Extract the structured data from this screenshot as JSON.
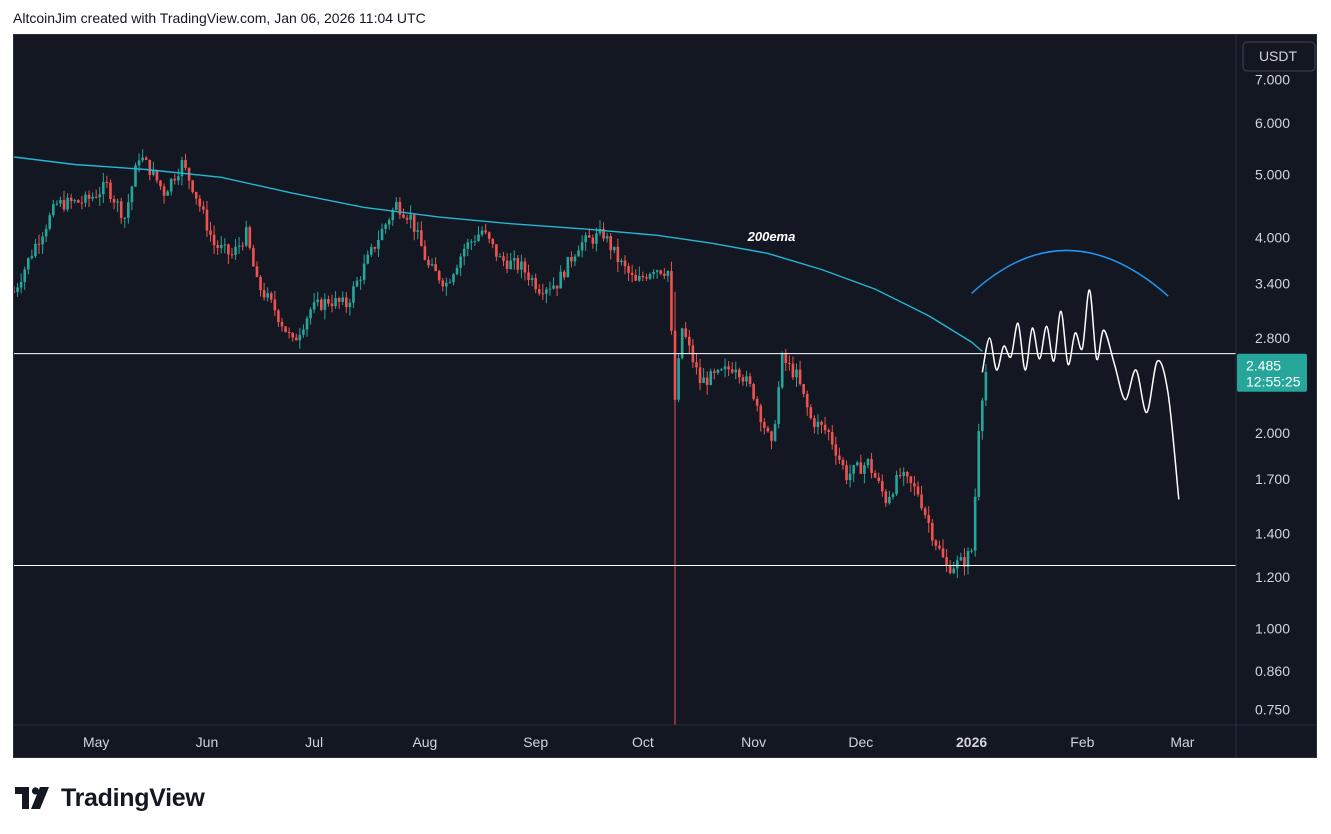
{
  "header": {
    "credit": "AltcoinJim created with TradingView.com, Jan 06, 2026 11:04 UTC"
  },
  "footer": {
    "brand": "TradingView",
    "logo_icon": "tradingview-logo-icon"
  },
  "colors": {
    "background": "#131722",
    "up": "#26a69a",
    "down": "#ef5350",
    "ema": "#25b6d6",
    "arc": "#2196f3",
    "lines": "#ffffff"
  },
  "chart_data": {
    "type": "candlestick",
    "currency": "USDT",
    "scale": "log",
    "ylim": [
      0.71,
      8.2
    ],
    "y_ticks": [
      "7.000",
      "6.000",
      "5.000",
      "4.000",
      "3.400",
      "2.800",
      "2.000",
      "1.700",
      "1.400",
      "1.200",
      "1.000",
      "0.860",
      "0.750"
    ],
    "y_tick_values": [
      7.0,
      6.0,
      5.0,
      4.0,
      3.4,
      2.8,
      2.0,
      1.7,
      1.4,
      1.2,
      1.0,
      0.86,
      0.75
    ],
    "x_ticks": [
      "May",
      "Jun",
      "Jul",
      "Aug",
      "Sep",
      "Oct",
      "Nov",
      "Dec",
      "2026",
      "Feb",
      "Mar"
    ],
    "x_tick_dates": [
      "2025-05-01",
      "2025-06-01",
      "2025-07-01",
      "2025-08-01",
      "2025-09-01",
      "2025-10-01",
      "2025-11-01",
      "2025-12-01",
      "2026-01-01",
      "2026-02-01",
      "2026-03-01"
    ],
    "x_range": [
      "2025-04-08",
      "2026-03-16"
    ],
    "last_price": {
      "value": "2.485",
      "countdown": "12:55:25"
    },
    "horizontal_levels": [
      2.65,
      1.25
    ],
    "vertical_marker_date": "2025-10-10",
    "annotations": [
      {
        "text": "200ema",
        "date": "2025-11-06",
        "price": 3.95
      }
    ],
    "ema_label": "200ema",
    "ema_200": [
      {
        "date": "2025-04-08",
        "price": 5.32
      },
      {
        "date": "2025-04-25",
        "price": 5.18
      },
      {
        "date": "2025-05-15",
        "price": 5.09
      },
      {
        "date": "2025-06-05",
        "price": 4.95
      },
      {
        "date": "2025-06-25",
        "price": 4.68
      },
      {
        "date": "2025-07-15",
        "price": 4.45
      },
      {
        "date": "2025-08-05",
        "price": 4.3
      },
      {
        "date": "2025-08-25",
        "price": 4.2
      },
      {
        "date": "2025-09-15",
        "price": 4.12
      },
      {
        "date": "2025-10-05",
        "price": 4.03
      },
      {
        "date": "2025-10-20",
        "price": 3.92
      },
      {
        "date": "2025-11-05",
        "price": 3.78
      },
      {
        "date": "2025-11-20",
        "price": 3.57
      },
      {
        "date": "2025-12-05",
        "price": 3.33
      },
      {
        "date": "2025-12-20",
        "price": 3.03
      },
      {
        "date": "2026-01-01",
        "price": 2.76
      },
      {
        "date": "2026-01-04",
        "price": 2.67
      }
    ],
    "projection_path": [
      {
        "date": "2026-01-04",
        "price": 2.48
      },
      {
        "date": "2026-01-06",
        "price": 2.8
      },
      {
        "date": "2026-01-08",
        "price": 2.5
      },
      {
        "date": "2026-01-10",
        "price": 2.72
      },
      {
        "date": "2026-01-12",
        "price": 2.62
      },
      {
        "date": "2026-01-14",
        "price": 2.95
      },
      {
        "date": "2026-01-16",
        "price": 2.5
      },
      {
        "date": "2026-01-18",
        "price": 2.9
      },
      {
        "date": "2026-01-20",
        "price": 2.6
      },
      {
        "date": "2026-01-22",
        "price": 2.92
      },
      {
        "date": "2026-01-24",
        "price": 2.58
      },
      {
        "date": "2026-01-26",
        "price": 3.08
      },
      {
        "date": "2026-01-28",
        "price": 2.55
      },
      {
        "date": "2026-01-30",
        "price": 2.85
      },
      {
        "date": "2026-02-01",
        "price": 2.7
      },
      {
        "date": "2026-02-03",
        "price": 3.32
      },
      {
        "date": "2026-02-05",
        "price": 2.6
      },
      {
        "date": "2026-02-07",
        "price": 2.88
      },
      {
        "date": "2026-02-10",
        "price": 2.55
      },
      {
        "date": "2026-02-13",
        "price": 2.25
      },
      {
        "date": "2026-02-16",
        "price": 2.5
      },
      {
        "date": "2026-02-19",
        "price": 2.15
      },
      {
        "date": "2026-02-22",
        "price": 2.58
      },
      {
        "date": "2026-02-25",
        "price": 2.3
      },
      {
        "date": "2026-02-28",
        "price": 1.58
      }
    ],
    "arc_projection": {
      "start": {
        "date": "2026-01-01",
        "price": 3.28
      },
      "peak": {
        "date": "2026-01-28",
        "price": 3.82
      },
      "end": {
        "date": "2026-02-25",
        "price": 3.25
      }
    },
    "price_path": [
      {
        "date": "2025-04-08",
        "price": 3.3
      },
      {
        "date": "2025-04-14",
        "price": 3.9
      },
      {
        "date": "2025-04-20",
        "price": 4.5
      },
      {
        "date": "2025-04-28",
        "price": 4.55
      },
      {
        "date": "2025-05-04",
        "price": 4.8
      },
      {
        "date": "2025-05-09",
        "price": 4.3
      },
      {
        "date": "2025-05-13",
        "price": 5.35
      },
      {
        "date": "2025-05-16",
        "price": 5.1
      },
      {
        "date": "2025-05-20",
        "price": 4.7
      },
      {
        "date": "2025-05-25",
        "price": 5.2
      },
      {
        "date": "2025-05-28",
        "price": 4.8
      },
      {
        "date": "2025-06-03",
        "price": 3.9
      },
      {
        "date": "2025-06-08",
        "price": 3.75
      },
      {
        "date": "2025-06-12",
        "price": 4.05
      },
      {
        "date": "2025-06-15",
        "price": 3.4
      },
      {
        "date": "2025-06-20",
        "price": 3.1
      },
      {
        "date": "2025-06-25",
        "price": 2.75
      },
      {
        "date": "2025-06-30",
        "price": 3.1
      },
      {
        "date": "2025-07-05",
        "price": 3.2
      },
      {
        "date": "2025-07-10",
        "price": 3.15
      },
      {
        "date": "2025-07-15",
        "price": 3.6
      },
      {
        "date": "2025-07-20",
        "price": 4.1
      },
      {
        "date": "2025-07-24",
        "price": 4.5
      },
      {
        "date": "2025-07-28",
        "price": 4.3
      },
      {
        "date": "2025-08-02",
        "price": 3.6
      },
      {
        "date": "2025-08-07",
        "price": 3.4
      },
      {
        "date": "2025-08-12",
        "price": 3.85
      },
      {
        "date": "2025-08-17",
        "price": 4.1
      },
      {
        "date": "2025-08-22",
        "price": 3.7
      },
      {
        "date": "2025-08-28",
        "price": 3.6
      },
      {
        "date": "2025-09-02",
        "price": 3.35
      },
      {
        "date": "2025-09-07",
        "price": 3.4
      },
      {
        "date": "2025-09-13",
        "price": 3.9
      },
      {
        "date": "2025-09-20",
        "price": 4.05
      },
      {
        "date": "2025-09-24",
        "price": 3.7
      },
      {
        "date": "2025-09-29",
        "price": 3.4
      },
      {
        "date": "2025-10-04",
        "price": 3.6
      },
      {
        "date": "2025-10-08",
        "price": 3.55
      },
      {
        "date": "2025-10-10",
        "price": 2.25
      },
      {
        "date": "2025-10-12",
        "price": 2.9
      },
      {
        "date": "2025-10-17",
        "price": 2.4
      },
      {
        "date": "2025-10-22",
        "price": 2.45
      },
      {
        "date": "2025-10-27",
        "price": 2.55
      },
      {
        "date": "2025-11-01",
        "price": 2.3
      },
      {
        "date": "2025-11-06",
        "price": 1.9
      },
      {
        "date": "2025-11-09",
        "price": 2.6
      },
      {
        "date": "2025-11-13",
        "price": 2.45
      },
      {
        "date": "2025-11-17",
        "price": 2.1
      },
      {
        "date": "2025-11-22",
        "price": 2.0
      },
      {
        "date": "2025-11-27",
        "price": 1.72
      },
      {
        "date": "2025-12-03",
        "price": 1.8
      },
      {
        "date": "2025-12-08",
        "price": 1.58
      },
      {
        "date": "2025-12-12",
        "price": 1.72
      },
      {
        "date": "2025-12-17",
        "price": 1.62
      },
      {
        "date": "2025-12-21",
        "price": 1.4
      },
      {
        "date": "2025-12-25",
        "price": 1.24
      },
      {
        "date": "2025-12-30",
        "price": 1.27
      },
      {
        "date": "2026-01-01",
        "price": 1.32
      },
      {
        "date": "2026-01-02",
        "price": 1.6
      },
      {
        "date": "2026-01-03",
        "price": 2.05
      },
      {
        "date": "2026-01-04",
        "price": 2.3
      },
      {
        "date": "2026-01-05",
        "price": 2.485
      }
    ]
  }
}
